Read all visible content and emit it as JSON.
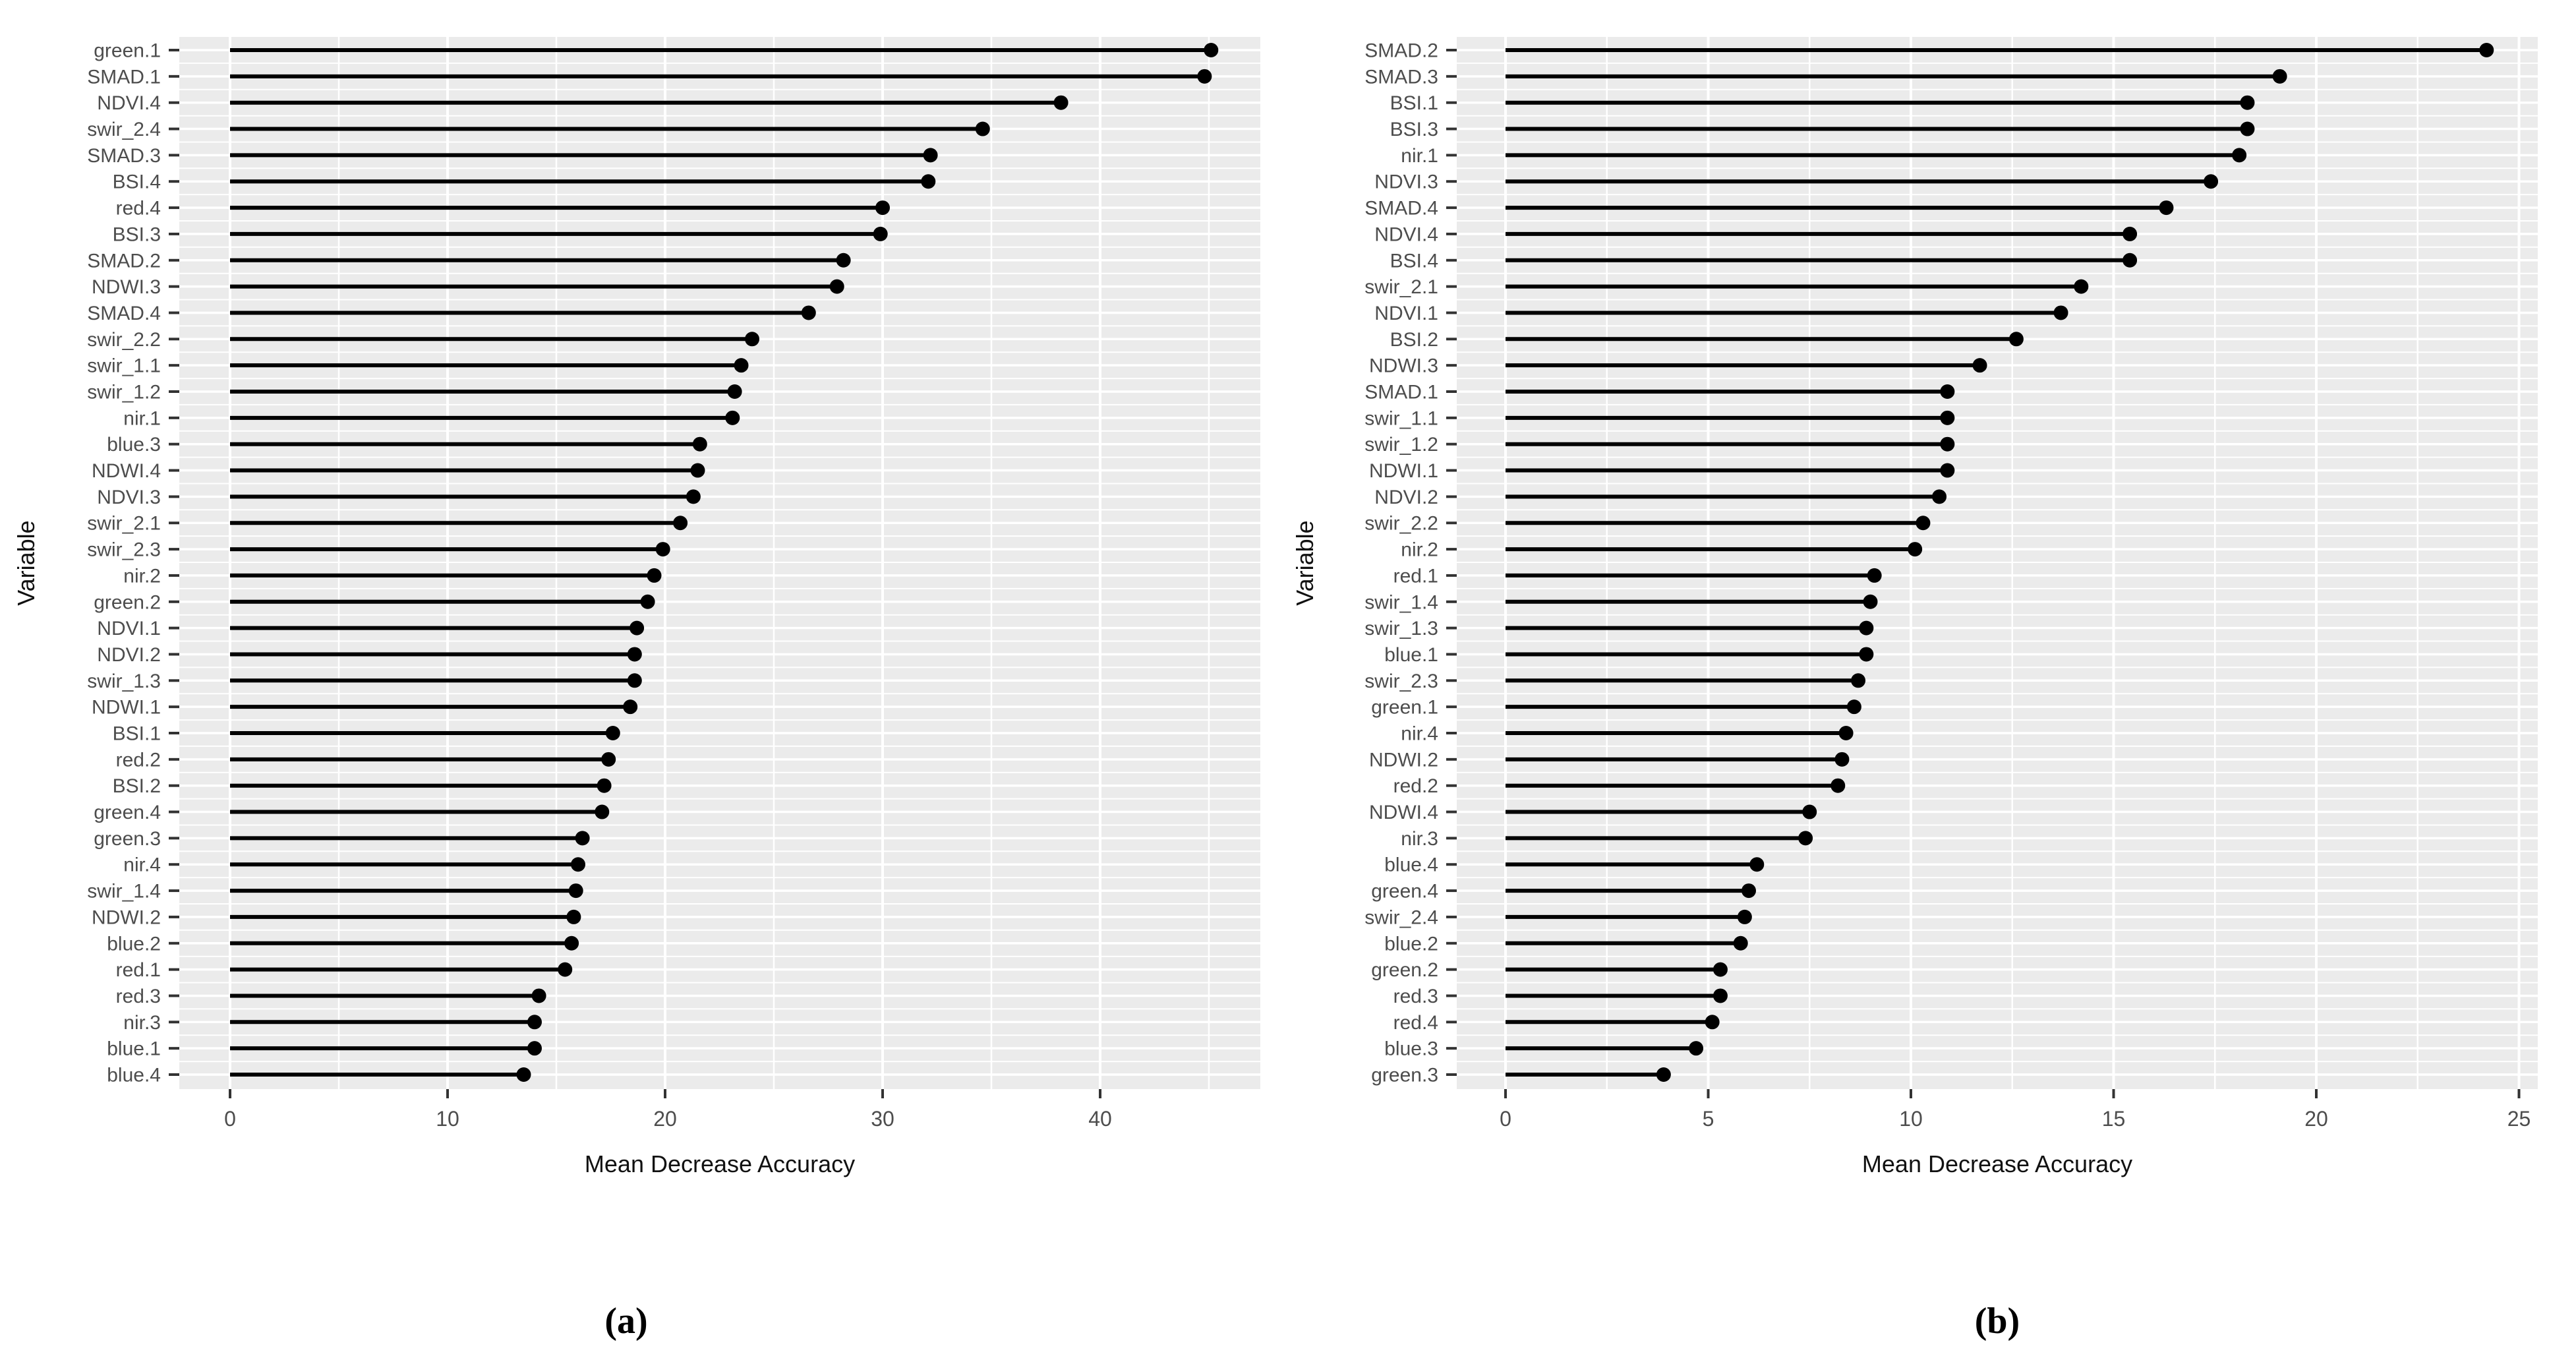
{
  "figure": {
    "background": "#ffffff",
    "panel_background": "#ebebeb",
    "grid_color": "#ffffff",
    "lollipop_color": "#000000",
    "axis_text_color": "#4d4d4d",
    "tick_mark_color": "#333333",
    "caption_a": "(a)",
    "caption_b": "(b)"
  },
  "chart_data": [
    {
      "id": "a",
      "type": "scatter",
      "style": "lollipop-horizontal",
      "caption": "(a)",
      "xlabel": "Mean Decrease Accuracy",
      "ylabel": "Variable",
      "xlim": [
        -2.3,
        47.8
      ],
      "xticks": [
        0,
        10,
        20,
        30,
        40
      ],
      "xticks_minor": [
        5,
        15,
        25,
        35,
        45
      ],
      "grid": "on",
      "legend": "none",
      "categories": [
        "green.1",
        "SMAD.1",
        "NDVI.4",
        "swir_2.4",
        "SMAD.3",
        "BSI.4",
        "red.4",
        "BSI.3",
        "SMAD.2",
        "NDWI.3",
        "SMAD.4",
        "swir_2.2",
        "swir_1.1",
        "swir_1.2",
        "nir.1",
        "blue.3",
        "NDWI.4",
        "NDVI.3",
        "swir_2.1",
        "swir_2.3",
        "nir.2",
        "green.2",
        "NDVI.1",
        "NDVI.2",
        "swir_1.3",
        "NDWI.1",
        "BSI.1",
        "red.2",
        "BSI.2",
        "green.4",
        "green.3",
        "nir.4",
        "swir_1.4",
        "NDWI.2",
        "blue.2",
        "red.1",
        "red.3",
        "nir.3",
        "blue.1",
        "blue.4"
      ],
      "values": [
        45.1,
        44.8,
        38.2,
        34.6,
        32.2,
        32.1,
        30.0,
        29.9,
        28.2,
        27.9,
        26.6,
        24.0,
        23.5,
        23.2,
        23.1,
        21.6,
        21.5,
        21.3,
        20.7,
        19.9,
        19.5,
        19.2,
        18.7,
        18.6,
        18.6,
        18.4,
        17.6,
        17.4,
        17.2,
        17.1,
        16.2,
        16.0,
        15.9,
        15.8,
        15.7,
        15.4,
        14.2,
        14.0,
        14.0,
        13.5
      ]
    },
    {
      "id": "b",
      "type": "scatter",
      "style": "lollipop-horizontal",
      "caption": "(b)",
      "xlabel": "Mean Decrease Accuracy",
      "ylabel": "Variable",
      "xlim": [
        -1.2,
        25.4
      ],
      "xticks": [
        0,
        5,
        10,
        15,
        20,
        25
      ],
      "xticks_minor": [
        2.5,
        7.5,
        12.5,
        17.5,
        22.5
      ],
      "grid": "on",
      "legend": "none",
      "categories": [
        "SMAD.2",
        "SMAD.3",
        "BSI.1",
        "BSI.3",
        "nir.1",
        "NDVI.3",
        "SMAD.4",
        "NDVI.4",
        "BSI.4",
        "swir_2.1",
        "NDVI.1",
        "BSI.2",
        "NDWI.3",
        "SMAD.1",
        "swir_1.1",
        "swir_1.2",
        "NDWI.1",
        "NDVI.2",
        "swir_2.2",
        "nir.2",
        "red.1",
        "swir_1.4",
        "swir_1.3",
        "blue.1",
        "swir_2.3",
        "green.1",
        "nir.4",
        "NDWI.2",
        "red.2",
        "NDWI.4",
        "nir.3",
        "blue.4",
        "green.4",
        "swir_2.4",
        "blue.2",
        "green.2",
        "red.3",
        "red.4",
        "blue.3",
        "green.3"
      ],
      "values": [
        24.2,
        19.1,
        18.3,
        18.3,
        18.1,
        17.4,
        16.3,
        15.4,
        15.4,
        14.2,
        13.7,
        12.6,
        11.7,
        10.9,
        10.9,
        10.9,
        10.9,
        10.7,
        10.3,
        10.1,
        9.1,
        9.0,
        8.9,
        8.9,
        8.7,
        8.6,
        8.4,
        8.3,
        8.2,
        7.5,
        7.4,
        6.2,
        6.0,
        5.9,
        5.8,
        5.3,
        5.3,
        5.1,
        4.7,
        3.9
      ]
    }
  ]
}
